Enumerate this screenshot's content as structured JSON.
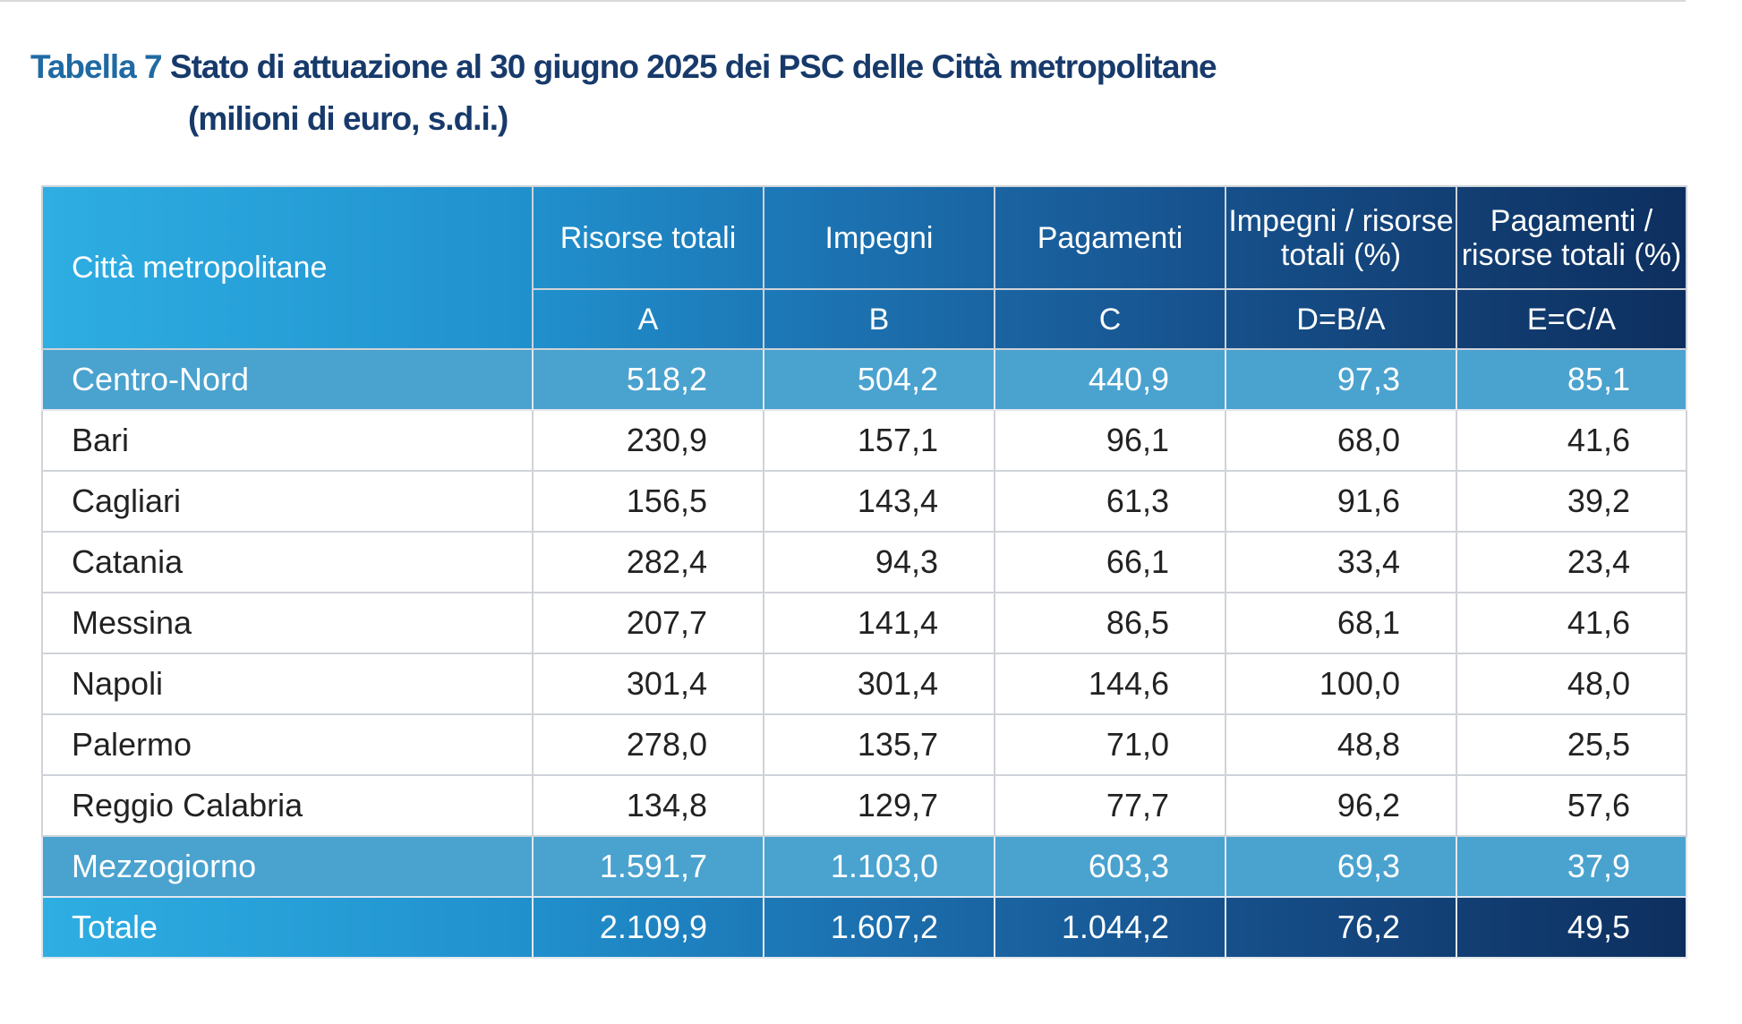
{
  "title": {
    "label": "Tabella 7",
    "text": "Stato di attuazione al 30 giugno 2025 dei PSC delle Città metropolitane",
    "subtitle": "(milioni di euro, s.d.i.)"
  },
  "table": {
    "header": [
      "Città metropolitane",
      "Risorse totali",
      "Impegni",
      "Pagamenti",
      "Impegni / risorse totali (%)",
      "Pagamenti / risorse totali (%)"
    ],
    "subheader": [
      "A",
      "B",
      "C",
      "D=B/A",
      "E=C/A"
    ],
    "rows": [
      [
        "Centro-Nord",
        "518,2",
        "504,2",
        "440,9",
        "97,3",
        "85,1"
      ],
      [
        "Bari",
        "230,9",
        "157,1",
        "96,1",
        "68,0",
        "41,6"
      ],
      [
        "Cagliari",
        "156,5",
        "143,4",
        "61,3",
        "91,6",
        "39,2"
      ],
      [
        "Catania",
        "282,4",
        "94,3",
        "66,1",
        "33,4",
        "23,4"
      ],
      [
        "Messina",
        "207,7",
        "141,4",
        "86,5",
        "68,1",
        "41,6"
      ],
      [
        "Napoli",
        "301,4",
        "301,4",
        "144,6",
        "100,0",
        "48,0"
      ],
      [
        "Palermo",
        "278,0",
        "135,7",
        "71,0",
        "48,8",
        "25,5"
      ],
      [
        "Reggio Calabria",
        "134,8",
        "129,7",
        "77,7",
        "96,2",
        "57,6"
      ],
      [
        "Mezzogiorno",
        "1.591,7",
        "1.103,0",
        "603,3",
        "69,3",
        "37,9"
      ],
      [
        "Totale",
        "2.109,9",
        "1.607,2",
        "1.044,2",
        "76,2",
        "49,5"
      ]
    ]
  }
}
